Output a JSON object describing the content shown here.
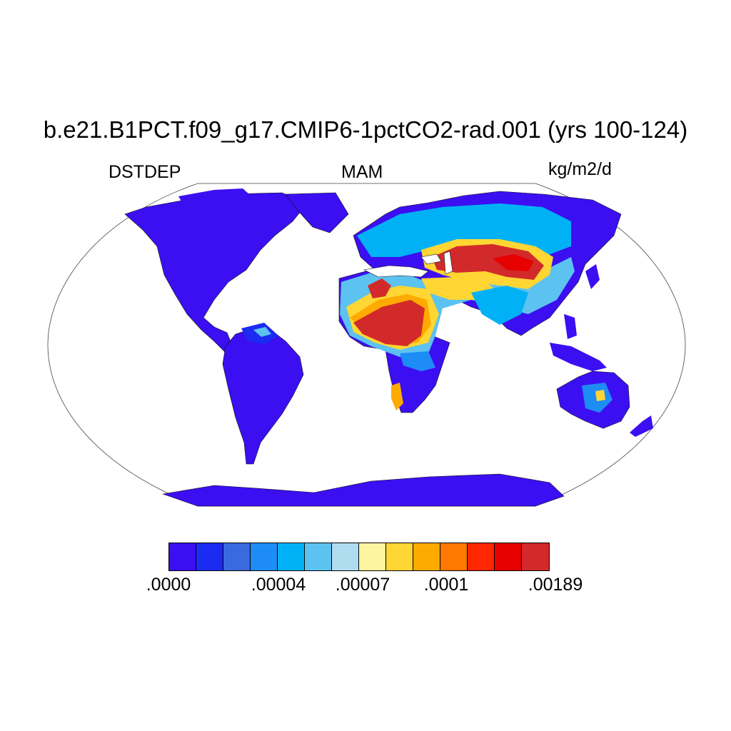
{
  "title": "b.e21.B1PCT.f09_g17.CMIP6-1pctCO2-rad.001 (yrs 100-124)",
  "left_label": "DSTDEP",
  "center_label": "MAM",
  "right_label": "kg/m2/d",
  "colorbar": {
    "colors": [
      "#3b0ff2",
      "#1b2bf2",
      "#3a6ae0",
      "#1e8cf5",
      "#00b2f5",
      "#5cc2f0",
      "#b0dcf0",
      "#fff5a0",
      "#ffd633",
      "#ffaa00",
      "#ff7800",
      "#ff2600",
      "#e60000",
      "#d22a2a"
    ],
    "labels": [
      ".0000",
      ".00004",
      ".00007",
      ".0001",
      ".00189"
    ]
  },
  "map": {
    "projection": "Robinson",
    "field": "DSTDEP",
    "ocean_color": "#ffffff",
    "coastline_color": "#000000"
  }
}
